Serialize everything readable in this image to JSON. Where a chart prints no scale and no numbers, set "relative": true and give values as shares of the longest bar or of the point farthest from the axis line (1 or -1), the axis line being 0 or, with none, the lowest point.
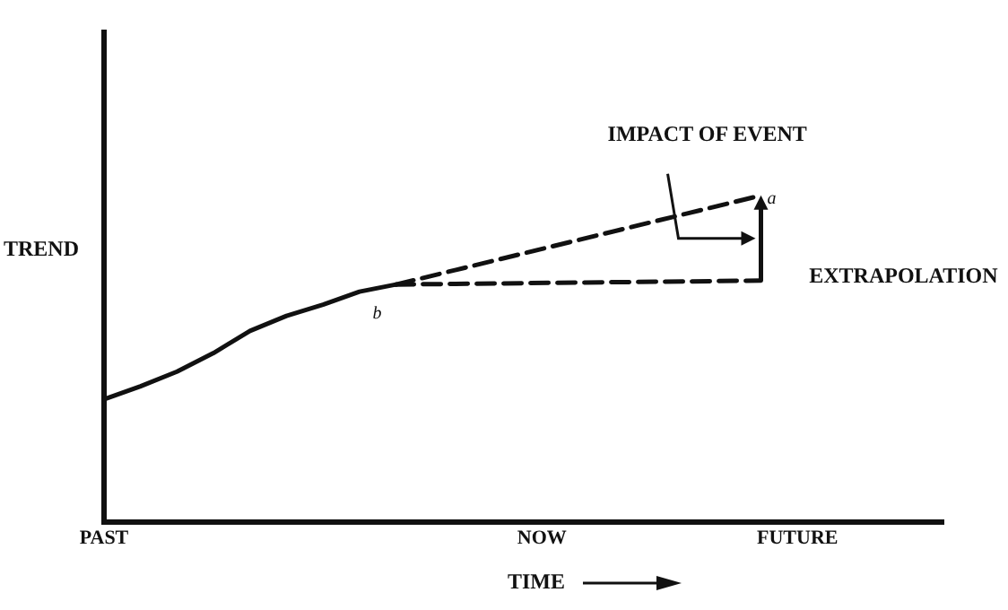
{
  "chart_data": {
    "type": "line",
    "relative": true,
    "xlabel": "TIME",
    "ylabel": "TREND",
    "categories": [
      "PAST",
      null,
      null,
      null,
      null,
      null,
      null,
      null,
      null,
      null,
      null,
      null,
      "NOW",
      null,
      null,
      null,
      null,
      null,
      null,
      "FUTURE",
      null,
      null,
      null,
      null
    ],
    "tick_labels": "x",
    "grid": false,
    "legend": false,
    "marker": "none",
    "series": [
      {
        "color": "#111111",
        "line_style": "solid",
        "values": [
          0.375,
          0.415,
          0.46,
          0.517,
          0.585,
          0.631,
          0.665,
          0.705,
          0.727,
          null,
          null,
          null,
          null,
          null,
          null,
          null,
          null,
          null,
          null,
          null,
          null,
          null,
          null,
          null
        ]
      },
      {
        "color": "#111111",
        "line_style": "dashed",
        "values": [
          null,
          null,
          null,
          null,
          null,
          null,
          null,
          null,
          0.727,
          null,
          null,
          null,
          null,
          null,
          null,
          null,
          null,
          null,
          1.0,
          null,
          null,
          null,
          null,
          null
        ]
      },
      {
        "color": "#111111",
        "line_style": "dashed",
        "values": [
          null,
          null,
          null,
          null,
          null,
          null,
          null,
          null,
          0.727,
          null,
          null,
          null,
          null,
          null,
          null,
          null,
          null,
          null,
          0.739,
          null,
          null,
          null,
          null,
          null
        ]
      }
    ],
    "annotations": [
      "IMPACT OF EVENT",
      "a",
      "b",
      "EXTRAPOLATION"
    ]
  }
}
